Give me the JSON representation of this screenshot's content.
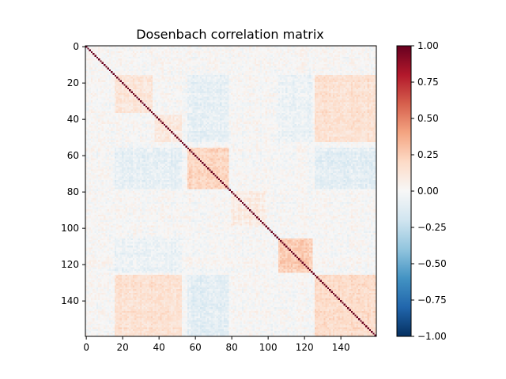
{
  "chart_data": {
    "type": "heatmap",
    "title": "Dosenbach correlation matrix",
    "xlabel": "",
    "ylabel": "",
    "matrix_size": 160,
    "xlim": [
      0,
      159
    ],
    "ylim": [
      159,
      0
    ],
    "x_ticks": [
      0,
      20,
      40,
      60,
      80,
      100,
      120,
      140
    ],
    "y_ticks": [
      0,
      20,
      40,
      60,
      80,
      100,
      120,
      140
    ],
    "x_tick_labels": [
      "0",
      "20",
      "40",
      "60",
      "80",
      "100",
      "120",
      "140"
    ],
    "y_tick_labels": [
      "0",
      "20",
      "40",
      "60",
      "80",
      "100",
      "120",
      "140"
    ],
    "diagonal_value": 1.0,
    "background_value": 0.0,
    "colormap": "RdBu_r",
    "colormap_stops": [
      "#053061",
      "#2166ac",
      "#4393c3",
      "#92c5de",
      "#d1e5f0",
      "#f7f7f7",
      "#fddbc7",
      "#f4a582",
      "#d6604d",
      "#b2182b",
      "#67001f"
    ],
    "colorbar": {
      "range": [
        -1.0,
        1.0
      ],
      "ticks": [
        1.0,
        0.75,
        0.5,
        0.25,
        0.0,
        -0.25,
        -0.5,
        -0.75,
        -1.0
      ],
      "tick_labels": [
        "1.00",
        "0.75",
        "0.50",
        "0.25",
        "0.00",
        "−0.25",
        "−0.50",
        "−0.75",
        "−1.00"
      ]
    },
    "blocks": [
      {
        "range": [
          56,
          78
        ],
        "value": 0.22
      },
      {
        "range": [
          106,
          124
        ],
        "value": 0.25
      },
      {
        "range": [
          126,
          159
        ],
        "value": 0.18
      },
      {
        "range": [
          16,
          36
        ],
        "value": 0.12
      },
      {
        "range": [
          38,
          52
        ],
        "value": 0.1
      },
      {
        "range": [
          80,
          98
        ],
        "value": 0.08
      }
    ],
    "cross_blocks": [
      {
        "rows": [
          16,
          52
        ],
        "cols": [
          126,
          159
        ],
        "value": 0.15
      },
      {
        "rows": [
          126,
          159
        ],
        "cols": [
          16,
          52
        ],
        "value": 0.15
      },
      {
        "rows": [
          16,
          52
        ],
        "cols": [
          56,
          78
        ],
        "value": -0.08
      },
      {
        "rows": [
          56,
          78
        ],
        "cols": [
          16,
          52
        ],
        "value": -0.08
      },
      {
        "rows": [
          56,
          78
        ],
        "cols": [
          126,
          159
        ],
        "value": -0.1
      },
      {
        "rows": [
          126,
          159
        ],
        "cols": [
          56,
          78
        ],
        "value": -0.1
      },
      {
        "rows": [
          106,
          124
        ],
        "cols": [
          16,
          52
        ],
        "value": -0.06
      },
      {
        "rows": [
          16,
          52
        ],
        "cols": [
          106,
          124
        ],
        "value": -0.06
      }
    ]
  }
}
